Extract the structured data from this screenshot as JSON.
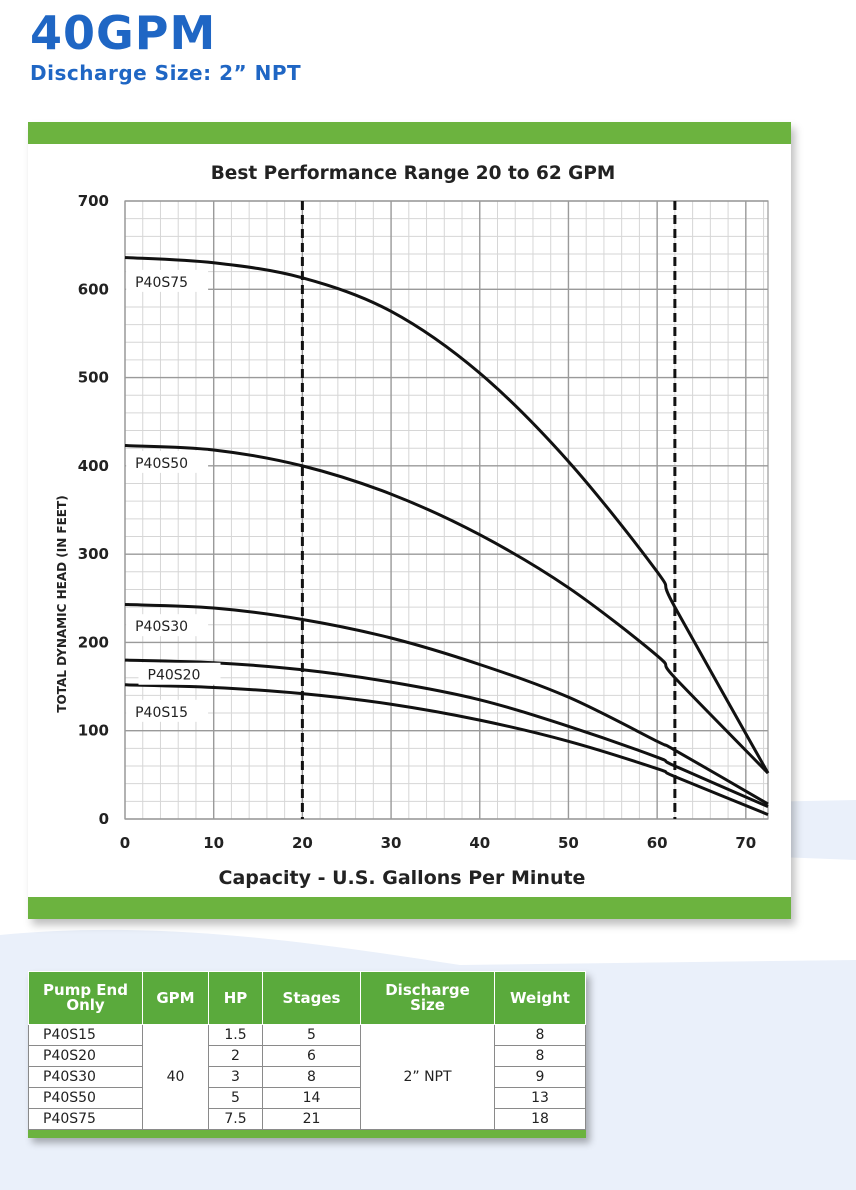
{
  "header": {
    "title": "40GPM",
    "subtitle": "Discharge Size: 2” NPT"
  },
  "colors": {
    "title_blue": "#1f66c4",
    "accent_green": "#6cb33f",
    "table_header_green": "#5aaa3c"
  },
  "chart_data": {
    "type": "line",
    "title": "Best Performance Range 20 to 62 GPM",
    "xlabel": "Capacity - U.S. Gallons Per Minute",
    "ylabel": "TOTAL DYNAMIC HEAD (IN FEET)",
    "xlim": [
      0,
      72.5
    ],
    "ylim": [
      0,
      700
    ],
    "xticks": [
      0,
      10,
      20,
      30,
      40,
      50,
      60,
      70
    ],
    "yticks": [
      0,
      100,
      200,
      300,
      400,
      500,
      600,
      700
    ],
    "grid": true,
    "reference_lines": [
      20,
      62
    ],
    "series": [
      {
        "name": "P40S75",
        "x": [
          0,
          10,
          20,
          30,
          40,
          50,
          60,
          62,
          72.5
        ],
        "y": [
          636,
          630,
          613,
          575,
          505,
          405,
          280,
          240,
          52
        ]
      },
      {
        "name": "P40S50",
        "x": [
          0,
          10,
          20,
          30,
          40,
          50,
          60,
          62,
          72.5
        ],
        "y": [
          423,
          418,
          400,
          368,
          322,
          262,
          185,
          160,
          52
        ]
      },
      {
        "name": "P40S30",
        "x": [
          0,
          10,
          20,
          30,
          40,
          50,
          60,
          62,
          72.5
        ],
        "y": [
          243,
          239,
          226,
          205,
          175,
          138,
          88,
          78,
          17
        ]
      },
      {
        "name": "P40S20",
        "x": [
          0,
          10,
          20,
          30,
          40,
          50,
          60,
          62,
          72.5
        ],
        "y": [
          180,
          177,
          169,
          155,
          135,
          105,
          70,
          60,
          14
        ]
      },
      {
        "name": "P40S15",
        "x": [
          0,
          10,
          20,
          30,
          40,
          50,
          60,
          62,
          72.5
        ],
        "y": [
          152,
          149,
          142,
          130,
          112,
          88,
          57,
          48,
          5
        ]
      }
    ]
  },
  "spec_table": {
    "headers": [
      "Pump End Only",
      "GPM",
      "HP",
      "Stages",
      "Discharge Size",
      "Weight"
    ],
    "gpm": "40",
    "discharge_size": "2” NPT",
    "rows": [
      {
        "pump": "P40S15",
        "hp": "1.5",
        "stages": "5",
        "weight": "8"
      },
      {
        "pump": "P40S20",
        "hp": "2",
        "stages": "6",
        "weight": "8"
      },
      {
        "pump": "P40S30",
        "hp": "3",
        "stages": "8",
        "weight": "9"
      },
      {
        "pump": "P40S50",
        "hp": "5",
        "stages": "14",
        "weight": "13"
      },
      {
        "pump": "P40S75",
        "hp": "7.5",
        "stages": "21",
        "weight": "18"
      }
    ]
  }
}
